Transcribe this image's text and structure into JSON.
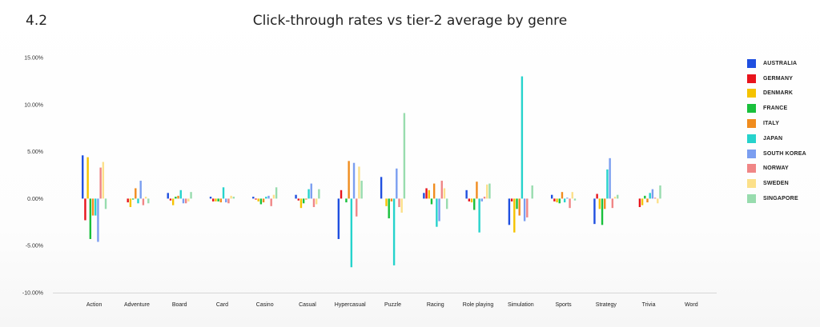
{
  "header": {
    "section_number": "4.2"
  },
  "chart_data": {
    "type": "bar",
    "title": "Click-through rates vs tier-2 average by genre",
    "xlabel": "",
    "ylabel": "",
    "ylim": [
      -10,
      15
    ],
    "yticks": [
      15,
      10,
      5,
      0,
      -5,
      -10
    ],
    "ytick_labels": [
      "15.00%",
      "10.00%",
      "5.00%",
      "0.00%",
      "-5.00%",
      "-10.00%"
    ],
    "legend_position": "right",
    "grid": false,
    "categories": [
      "Action",
      "Adventure",
      "Board",
      "Card",
      "Casino",
      "Casual",
      "Hypercasual",
      "Puzzle",
      "Racing",
      "Role playing",
      "Simulation",
      "Sports",
      "Strategy",
      "Trivia",
      "Word"
    ],
    "series": [
      {
        "name": "AUSTRALIA",
        "color": "#1f4fe0",
        "values": [
          4.6,
          0,
          0.6,
          0.2,
          0.2,
          0.4,
          -4.3,
          2.3,
          0.6,
          0.9,
          -2.8,
          0.4,
          -2.7,
          0,
          0
        ]
      },
      {
        "name": "GERMANY",
        "color": "#e8141c",
        "values": [
          -2.3,
          -0.4,
          -0.2,
          -0.3,
          -0.1,
          -0.2,
          0.9,
          0,
          1.1,
          -0.3,
          -0.3,
          -0.3,
          0.5,
          -0.9,
          0
        ]
      },
      {
        "name": "DENMARK",
        "color": "#f5c300",
        "values": [
          4.4,
          -0.9,
          -0.7,
          -0.3,
          -0.3,
          -1,
          0,
          -0.8,
          0.9,
          -0.4,
          -3.6,
          -0.4,
          -1.1,
          -0.7,
          0
        ]
      },
      {
        "name": "FRANCE",
        "color": "#19c03c",
        "values": [
          -4.3,
          -0.1,
          0.2,
          -0.3,
          -0.6,
          -0.5,
          -0.4,
          -2.1,
          -0.6,
          -1.2,
          -1.1,
          -0.5,
          -2.8,
          0.3,
          0
        ]
      },
      {
        "name": "ITALY",
        "color": "#f08c1e",
        "values": [
          -1.8,
          1.1,
          0.3,
          -0.4,
          -0.4,
          -0.1,
          4,
          -0.3,
          1.6,
          1.8,
          -1.8,
          0.7,
          -1.1,
          -0.4,
          0
        ]
      },
      {
        "name": "JAPAN",
        "color": "#26d3cc",
        "values": [
          -1.8,
          -0.5,
          0.9,
          1.2,
          0.2,
          1,
          -7.3,
          -7.1,
          -3,
          -3.6,
          13,
          -0.4,
          3.1,
          0.6,
          0
        ]
      },
      {
        "name": "SOUTH KOREA",
        "color": "#7b9ef0",
        "values": [
          -4.6,
          1.9,
          -0.5,
          -0.4,
          0.3,
          1.6,
          3.8,
          3.2,
          -2.4,
          -0.3,
          -2.4,
          0.1,
          4.3,
          1,
          0
        ]
      },
      {
        "name": "NORWAY",
        "color": "#f08686",
        "values": [
          3.3,
          -0.7,
          -0.5,
          -0.5,
          -0.8,
          -0.9,
          -1.9,
          -0.9,
          1.9,
          0.2,
          -2,
          -1,
          -1,
          0.1,
          0
        ]
      },
      {
        "name": "SWEDEN",
        "color": "#fce08a",
        "values": [
          3.9,
          0.2,
          -0.3,
          0.3,
          0.4,
          -0.6,
          3.4,
          -1.5,
          1.1,
          1.5,
          0,
          0.7,
          0.2,
          -0.5,
          0
        ]
      },
      {
        "name": "SINGAPORE",
        "color": "#98dcae",
        "values": [
          -1.1,
          -0.5,
          0.7,
          0.2,
          1.2,
          1,
          1.9,
          9.1,
          -1.1,
          1.6,
          1.4,
          -0.2,
          0.4,
          1.4,
          0
        ]
      }
    ]
  }
}
